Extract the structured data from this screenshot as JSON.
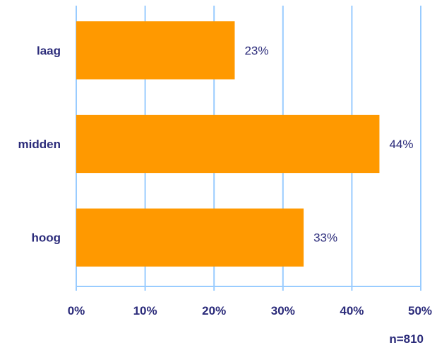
{
  "chart_data": {
    "type": "bar",
    "orientation": "horizontal",
    "title": "",
    "categories": [
      "laag",
      "midden",
      "hoog"
    ],
    "values": [
      23,
      44,
      33
    ],
    "data_labels": [
      "23%",
      "44%",
      "33%"
    ],
    "xlim": [
      0,
      50
    ],
    "x_ticks": [
      "0%",
      "10%",
      "20%",
      "30%",
      "40%",
      "50%"
    ],
    "grid": true,
    "note": "n=810",
    "colors": {
      "bar": "#ff9900",
      "grid": "#99ccff",
      "text": "#2b2b7a",
      "axis": "#99ccff"
    }
  }
}
